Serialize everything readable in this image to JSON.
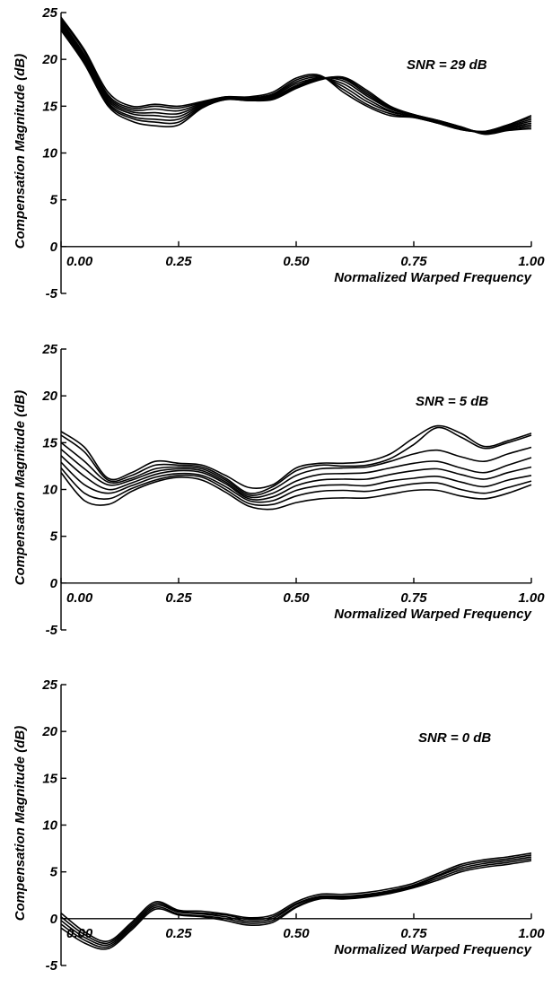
{
  "chart_data": [
    {
      "type": "line",
      "xlabel": "Normalized Warped Frequency",
      "ylabel": "Compensation Magnitude (dB)",
      "annotation": "SNR = 29 dB",
      "xlim": [
        0,
        1
      ],
      "ylim": [
        -5,
        25
      ],
      "xticks": [
        "0.00",
        "0.25",
        "0.50",
        "0.75",
        "1.00"
      ],
      "yticks": [
        "-5",
        "0",
        "5",
        "10",
        "15",
        "20",
        "25"
      ],
      "x": [
        0,
        0.05,
        0.1,
        0.15,
        0.2,
        0.25,
        0.3,
        0.35,
        0.4,
        0.45,
        0.5,
        0.55,
        0.6,
        0.65,
        0.7,
        0.75,
        0.8,
        0.85,
        0.9,
        0.95,
        1.0
      ],
      "series": [
        {
          "values": [
            24.5,
            21.0,
            16.5,
            15.0,
            15.2,
            15.0,
            15.5,
            16.0,
            16.0,
            16.5,
            18.0,
            18.3,
            16.5,
            15.0,
            14.0,
            13.8,
            13.2,
            12.5,
            12.3,
            13.0,
            14.0
          ]
        },
        {
          "values": [
            24.3,
            20.8,
            16.2,
            14.8,
            15.0,
            14.8,
            15.4,
            16.0,
            15.9,
            16.3,
            17.8,
            18.2,
            16.8,
            15.2,
            14.2,
            13.8,
            13.2,
            12.5,
            12.3,
            13.0,
            13.8
          ]
        },
        {
          "values": [
            24.1,
            20.5,
            16.0,
            14.6,
            14.7,
            14.5,
            15.3,
            15.9,
            15.8,
            16.2,
            17.6,
            18.1,
            17.1,
            15.5,
            14.4,
            13.9,
            13.3,
            12.6,
            12.3,
            12.9,
            13.6
          ]
        },
        {
          "values": [
            23.9,
            20.3,
            15.8,
            14.4,
            14.3,
            14.2,
            15.2,
            15.9,
            15.8,
            16.1,
            17.4,
            18.0,
            17.4,
            15.8,
            14.5,
            13.9,
            13.3,
            12.6,
            12.2,
            12.8,
            13.4
          ]
        },
        {
          "values": [
            23.7,
            20.1,
            15.6,
            14.2,
            14.0,
            13.9,
            15.1,
            15.8,
            15.7,
            16.0,
            17.2,
            18.0,
            17.7,
            16.1,
            14.7,
            14.0,
            13.4,
            12.7,
            12.2,
            12.7,
            13.2
          ]
        },
        {
          "values": [
            23.5,
            19.9,
            15.4,
            13.9,
            13.6,
            13.6,
            15.0,
            15.8,
            15.7,
            15.9,
            17.1,
            17.9,
            17.9,
            16.3,
            14.8,
            14.0,
            13.4,
            12.7,
            12.1,
            12.6,
            13.0
          ]
        },
        {
          "values": [
            23.3,
            19.7,
            15.2,
            13.7,
            13.3,
            13.3,
            14.9,
            15.7,
            15.6,
            15.8,
            17.0,
            17.9,
            18.0,
            16.5,
            14.9,
            14.1,
            13.5,
            12.8,
            12.1,
            12.5,
            12.8
          ]
        },
        {
          "values": [
            23.1,
            19.5,
            15.0,
            13.4,
            12.9,
            13.0,
            14.8,
            15.7,
            15.6,
            15.7,
            16.9,
            17.8,
            18.1,
            16.7,
            15.0,
            14.1,
            13.5,
            12.8,
            12.0,
            12.4,
            12.6
          ]
        }
      ]
    },
    {
      "type": "line",
      "xlabel": "Normalized Warped Frequency",
      "ylabel": "Compensation Magnitude (dB)",
      "annotation": "SNR = 5 dB",
      "xlim": [
        0,
        1
      ],
      "ylim": [
        -5,
        25
      ],
      "xticks": [
        "0.00",
        "0.25",
        "0.50",
        "0.75",
        "1.00"
      ],
      "yticks": [
        "-5",
        "0",
        "5",
        "10",
        "15",
        "20",
        "25"
      ],
      "x": [
        0,
        0.05,
        0.1,
        0.15,
        0.2,
        0.25,
        0.3,
        0.35,
        0.4,
        0.45,
        0.5,
        0.55,
        0.6,
        0.65,
        0.7,
        0.75,
        0.8,
        0.85,
        0.9,
        0.95,
        1.0
      ],
      "series": [
        {
          "values": [
            16.2,
            14.5,
            11.2,
            11.8,
            13.0,
            12.8,
            12.6,
            11.5,
            10.2,
            10.5,
            12.3,
            12.8,
            12.8,
            13.0,
            13.8,
            15.5,
            16.8,
            16.0,
            14.6,
            15.2,
            16.0
          ]
        },
        {
          "values": [
            15.8,
            14.0,
            11.0,
            11.5,
            12.6,
            12.6,
            12.4,
            11.2,
            9.6,
            10.3,
            12.0,
            12.6,
            12.5,
            12.6,
            13.3,
            14.8,
            16.6,
            15.6,
            14.4,
            15.0,
            15.8
          ]
        },
        {
          "values": [
            15.0,
            13.0,
            10.8,
            11.2,
            12.2,
            12.4,
            12.2,
            11.0,
            9.4,
            10.0,
            11.5,
            12.2,
            12.3,
            12.4,
            13.0,
            13.8,
            14.2,
            13.5,
            13.0,
            13.8,
            14.5
          ]
        },
        {
          "values": [
            14.3,
            12.2,
            10.5,
            11.0,
            11.9,
            12.2,
            12.0,
            10.8,
            9.2,
            9.6,
            10.9,
            11.6,
            11.7,
            11.8,
            12.3,
            12.8,
            13.0,
            12.3,
            11.8,
            12.6,
            13.4
          ]
        },
        {
          "values": [
            13.6,
            11.4,
            10.0,
            10.7,
            11.6,
            12.0,
            11.8,
            10.6,
            9.0,
            9.2,
            10.4,
            11.0,
            11.1,
            11.1,
            11.6,
            12.0,
            12.2,
            11.6,
            11.1,
            11.8,
            12.4
          ]
        },
        {
          "values": [
            12.9,
            10.5,
            9.6,
            10.4,
            11.3,
            11.7,
            11.5,
            10.3,
            8.8,
            8.8,
            9.9,
            10.4,
            10.5,
            10.4,
            10.9,
            11.2,
            11.4,
            10.8,
            10.3,
            11.0,
            11.5
          ]
        },
        {
          "values": [
            12.3,
            9.6,
            9.0,
            10.1,
            11.0,
            11.5,
            11.3,
            10.0,
            8.5,
            8.4,
            9.3,
            9.8,
            9.9,
            9.8,
            10.2,
            10.6,
            10.7,
            10.0,
            9.6,
            10.2,
            10.9
          ]
        },
        {
          "values": [
            11.8,
            8.8,
            8.4,
            9.8,
            10.8,
            11.3,
            11.0,
            9.7,
            8.2,
            7.9,
            8.6,
            9.0,
            9.1,
            9.1,
            9.5,
            9.9,
            9.9,
            9.3,
            9.0,
            9.6,
            10.5
          ]
        }
      ]
    },
    {
      "type": "line",
      "xlabel": "Normalized Warped Frequency",
      "ylabel": "Compensation Magnitude (dB)",
      "annotation": "SNR = 0 dB",
      "xlim": [
        0,
        1
      ],
      "ylim": [
        -5,
        25
      ],
      "xticks": [
        "0.00",
        "0.25",
        "0.50",
        "0.75",
        "1.00"
      ],
      "yticks": [
        "-5",
        "0",
        "5",
        "10",
        "15",
        "20",
        "25"
      ],
      "x": [
        0,
        0.05,
        0.1,
        0.15,
        0.2,
        0.25,
        0.3,
        0.35,
        0.4,
        0.45,
        0.5,
        0.55,
        0.6,
        0.65,
        0.7,
        0.75,
        0.8,
        0.85,
        0.9,
        0.95,
        1.0
      ],
      "series": [
        {
          "values": [
            0.6,
            -1.4,
            -2.4,
            -0.4,
            1.8,
            0.9,
            0.8,
            0.5,
            0.1,
            0.4,
            1.8,
            2.6,
            2.6,
            2.8,
            3.2,
            3.8,
            4.8,
            5.8,
            6.3,
            6.6,
            7.0
          ]
        },
        {
          "values": [
            0.2,
            -1.7,
            -2.6,
            -0.6,
            1.6,
            0.8,
            0.6,
            0.4,
            -0.1,
            0.2,
            1.6,
            2.4,
            2.4,
            2.6,
            3.0,
            3.6,
            4.6,
            5.6,
            6.1,
            6.4,
            6.8
          ]
        },
        {
          "values": [
            -0.2,
            -2.0,
            -2.8,
            -0.8,
            1.4,
            0.7,
            0.5,
            0.2,
            -0.3,
            0.0,
            1.5,
            2.3,
            2.3,
            2.5,
            2.9,
            3.5,
            4.5,
            5.4,
            5.9,
            6.2,
            6.6
          ]
        },
        {
          "values": [
            -0.6,
            -2.3,
            -3.0,
            -1.0,
            1.2,
            0.5,
            0.3,
            0.0,
            -0.5,
            -0.2,
            1.3,
            2.2,
            2.2,
            2.4,
            2.8,
            3.4,
            4.3,
            5.2,
            5.7,
            6.0,
            6.4
          ]
        },
        {
          "values": [
            -1.0,
            -2.6,
            -3.2,
            -1.2,
            1.0,
            0.4,
            0.2,
            -0.2,
            -0.7,
            -0.4,
            1.2,
            2.1,
            2.1,
            2.3,
            2.7,
            3.3,
            4.1,
            5.0,
            5.5,
            5.8,
            6.2
          ]
        }
      ]
    }
  ]
}
